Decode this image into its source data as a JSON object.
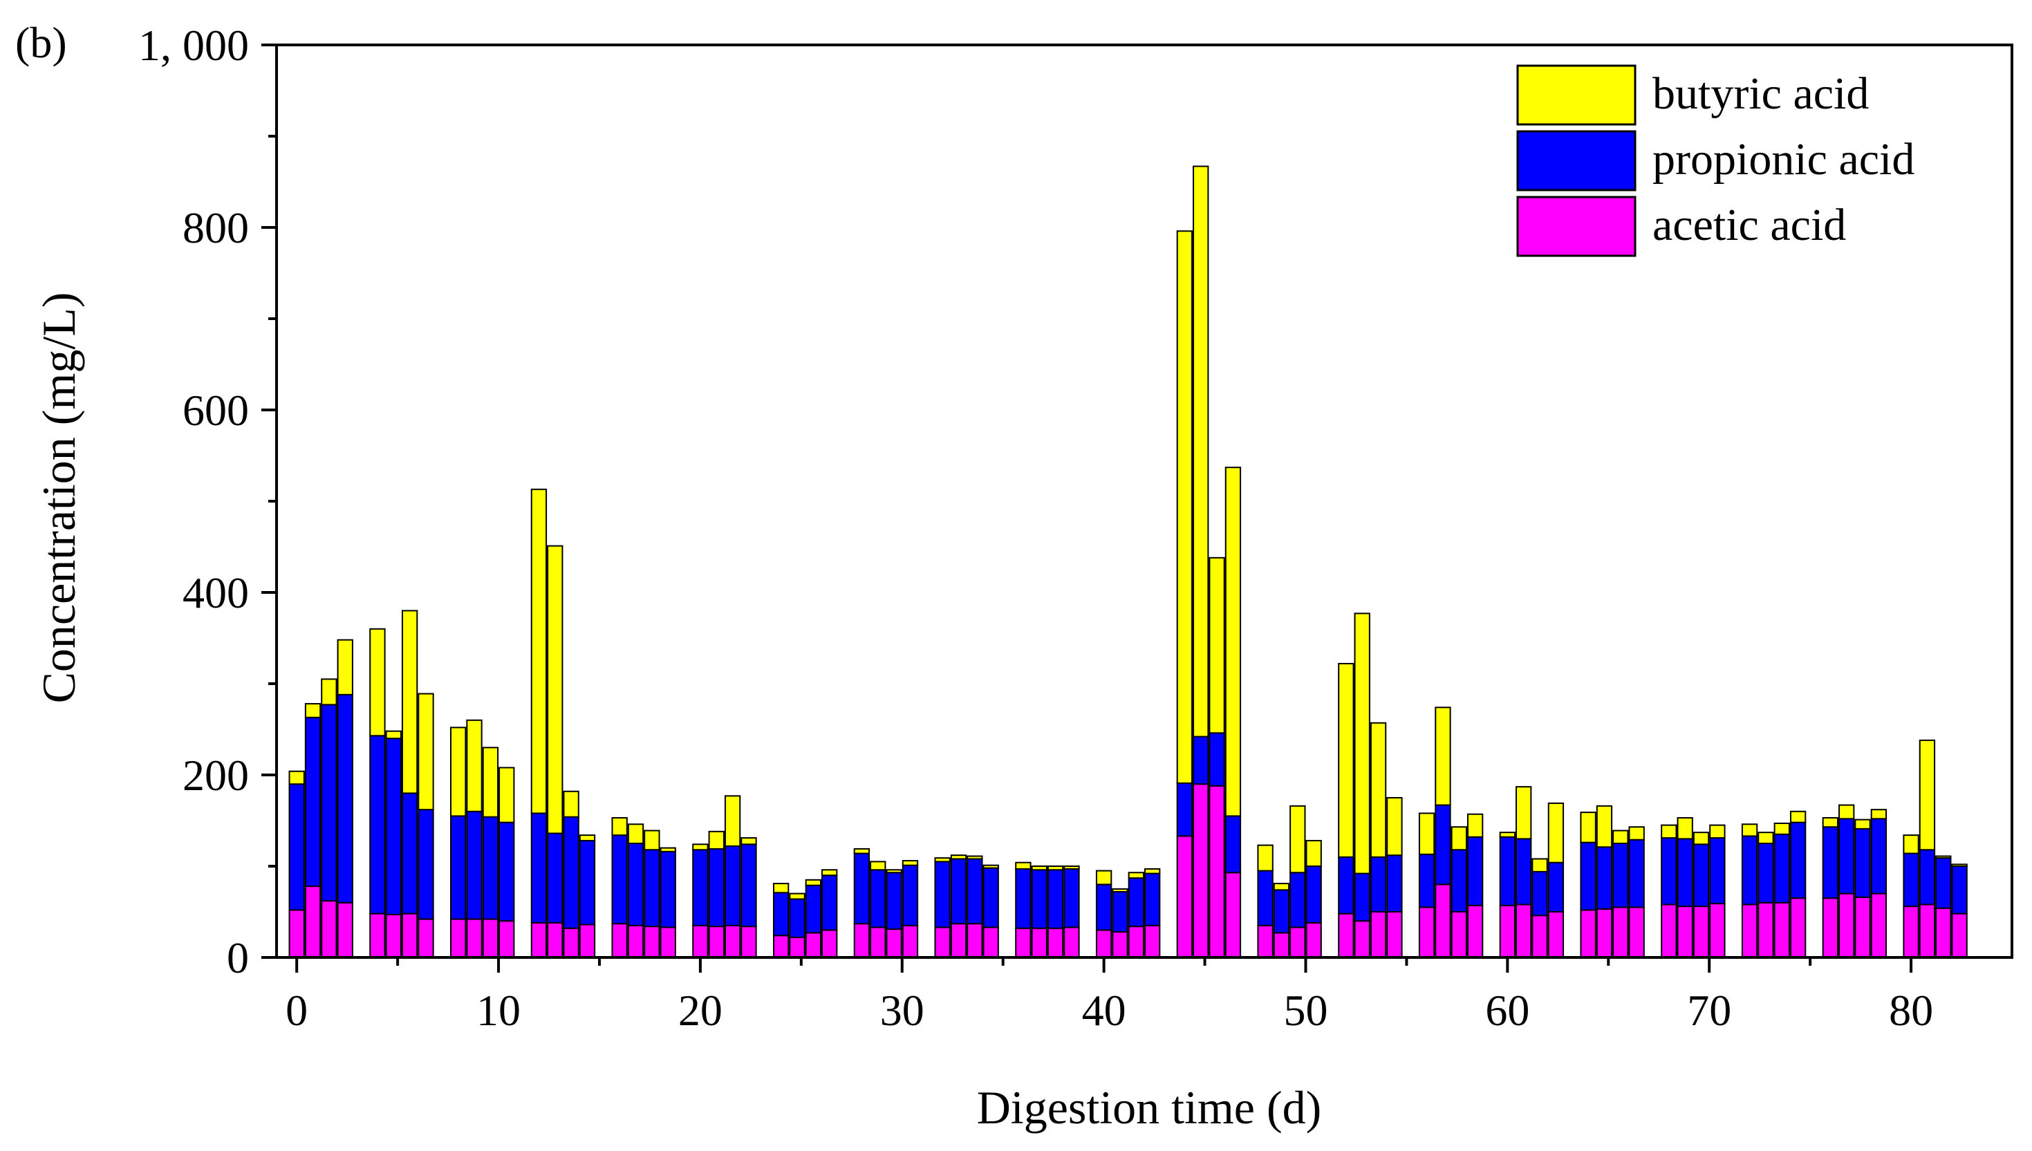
{
  "chart_data": {
    "type": "bar",
    "stacked": true,
    "panel_label": "(b)",
    "title": "",
    "xlabel": "Digestion time (d)",
    "ylabel": "Concentration (mg/L)",
    "xlim": [
      -1,
      85
    ],
    "ylim": [
      0,
      1000
    ],
    "x_ticks": [
      0,
      10,
      20,
      30,
      40,
      50,
      60,
      70,
      80
    ],
    "x_tick_labels": [
      "0",
      "10",
      "20",
      "30",
      "40",
      "50",
      "60",
      "70",
      "80"
    ],
    "y_ticks": [
      0,
      200,
      400,
      600,
      800,
      1000
    ],
    "y_tick_labels": [
      "0",
      "200",
      "400",
      "600",
      "800",
      "1, 000"
    ],
    "legend_position": "top-right",
    "x": [
      0,
      0.8,
      1.6,
      2.4,
      4,
      4.8,
      5.6,
      6.4,
      8,
      8.8,
      9.6,
      10.4,
      12,
      12.8,
      13.6,
      14.4,
      16,
      16.8,
      17.6,
      18.4,
      20,
      20.8,
      21.6,
      22.4,
      24,
      24.8,
      25.6,
      26.4,
      28,
      28.8,
      29.6,
      30.4,
      32,
      32.8,
      33.6,
      34.4,
      36,
      36.8,
      37.6,
      38.4,
      40,
      40.8,
      41.6,
      42.4,
      44,
      44.8,
      45.6,
      46.4,
      48,
      48.8,
      49.6,
      50.4,
      52,
      52.8,
      53.6,
      54.4,
      56,
      56.8,
      57.6,
      58.4,
      60,
      60.8,
      61.6,
      62.4,
      64,
      64.8,
      65.6,
      66.4,
      68,
      68.8,
      69.6,
      70.4,
      72,
      72.8,
      73.6,
      74.4,
      76,
      76.8,
      77.6,
      78.4,
      80,
      80.8,
      81.6,
      82.4
    ],
    "series": [
      {
        "name": "acetic acid",
        "color": "#FF00FF",
        "values": [
          52,
          78,
          62,
          60,
          48,
          47,
          48,
          42,
          42,
          42,
          42,
          40,
          38,
          38,
          32,
          36,
          37,
          35,
          34,
          33,
          35,
          34,
          35,
          34,
          24,
          22,
          27,
          30,
          37,
          33,
          31,
          35,
          33,
          37,
          37,
          33,
          32,
          32,
          32,
          33,
          30,
          28,
          34,
          35,
          133,
          190,
          188,
          93,
          35,
          27,
          33,
          38,
          48,
          40,
          50,
          50,
          55,
          80,
          50,
          57,
          57,
          58,
          46,
          50,
          52,
          53,
          55,
          55,
          58,
          56,
          56,
          59,
          58,
          60,
          60,
          65,
          65,
          70,
          66,
          70,
          56,
          58,
          54,
          48
        ]
      },
      {
        "name": "propionic acid",
        "color": "#0000FF",
        "values": [
          138,
          185,
          215,
          228,
          195,
          193,
          132,
          120,
          113,
          118,
          112,
          108,
          120,
          98,
          122,
          92,
          97,
          90,
          84,
          83,
          83,
          85,
          87,
          90,
          47,
          42,
          52,
          60,
          77,
          63,
          62,
          66,
          72,
          71,
          71,
          65,
          65,
          64,
          64,
          64,
          50,
          44,
          53,
          57,
          58,
          52,
          58,
          62,
          60,
          47,
          60,
          62,
          62,
          52,
          60,
          62,
          58,
          87,
          68,
          75,
          75,
          72,
          48,
          54,
          74,
          68,
          70,
          74,
          73,
          74,
          68,
          72,
          75,
          65,
          75,
          83,
          78,
          82,
          75,
          82,
          58,
          60,
          55,
          52
        ]
      },
      {
        "name": "butyric acid",
        "color": "#FFFF00",
        "values": [
          14,
          15,
          28,
          60,
          117,
          8,
          200,
          127,
          97,
          100,
          76,
          60,
          355,
          315,
          28,
          6,
          19,
          21,
          21,
          4,
          6,
          19,
          55,
          7,
          10,
          6,
          6,
          6,
          5,
          9,
          3,
          5,
          4,
          4,
          3,
          3,
          7,
          4,
          4,
          3,
          15,
          3,
          6,
          5,
          605,
          625,
          192,
          382,
          28,
          7,
          73,
          28,
          212,
          285,
          147,
          63,
          45,
          107,
          25,
          25,
          5,
          57,
          14,
          65,
          33,
          45,
          14,
          14,
          14,
          23,
          13,
          14,
          13,
          12,
          12,
          12,
          10,
          15,
          10,
          10,
          20,
          120,
          2,
          2
        ]
      }
    ]
  }
}
